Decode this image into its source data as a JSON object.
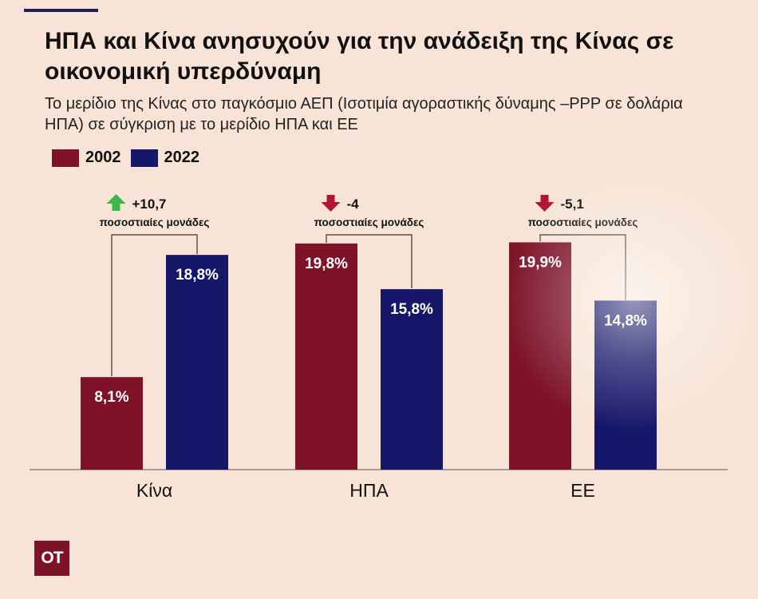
{
  "title": "ΗΠΑ και Κίνα ανησυχούν για την ανάδειξη της Κίνας σε οικονομική υπερδύναμη",
  "subtitle": "Το μερίδιο της Κίνας στο παγκόσμιο ΑΕΠ (Ισοτιμία αγοραστικής δύναμης –PPP σε δολάρια ΗΠΑ) σε σύγκριση με το μερίδιο ΗΠΑ και ΕΕ",
  "logo_text": "ΟΤ",
  "colors": {
    "series_2002": "#7d1228",
    "series_2022": "#17176a",
    "up_arrow": "#3cb84a",
    "down_arrow": "#b0162f",
    "background": "#f7e4d6"
  },
  "chart_data": {
    "type": "bar",
    "categories": [
      "Κίνα",
      "ΗΠΑ",
      "ΕΕ"
    ],
    "series": [
      {
        "name": "2002",
        "values": [
          8.1,
          19.8,
          19.9
        ],
        "labels": [
          "8,1%",
          "19,8%",
          "19,9%"
        ]
      },
      {
        "name": "2022",
        "values": [
          18.8,
          15.8,
          14.8
        ],
        "labels": [
          "18,8%",
          "15,8%",
          "14,8%"
        ]
      }
    ],
    "ylim": [
      0,
      24
    ],
    "legend": "top-left",
    "grid": false,
    "annotations": [
      {
        "category": "Κίνα",
        "direction": "up",
        "value": "+10,7",
        "unit": "ποσοστιαίες μονάδες"
      },
      {
        "category": "ΗΠΑ",
        "direction": "down",
        "value": "-4",
        "unit": "ποσοστιαίες μονάδες"
      },
      {
        "category": "ΕΕ",
        "direction": "down",
        "value": "-5,1",
        "unit": "ποσοστιαίες μονάδες"
      }
    ]
  }
}
